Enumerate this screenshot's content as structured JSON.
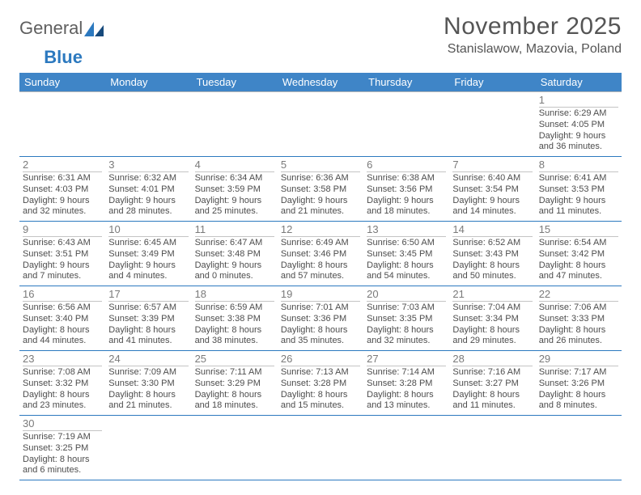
{
  "brand": {
    "part1": "General",
    "part2": "Blue"
  },
  "title": "November 2025",
  "location": "Stanislawow, Mazovia, Poland",
  "colors": {
    "header_bg": "#3f85c7",
    "header_text": "#ffffff",
    "row_border": "#2c79bf",
    "daynum_border": "#c4c4c4",
    "text": "#4d4d4d"
  },
  "dayHeaders": [
    "Sunday",
    "Monday",
    "Tuesday",
    "Wednesday",
    "Thursday",
    "Friday",
    "Saturday"
  ],
  "weeks": [
    [
      null,
      null,
      null,
      null,
      null,
      null,
      {
        "n": "1",
        "sr": "6:29 AM",
        "ss": "4:05 PM",
        "dl": "9 hours and 36 minutes."
      }
    ],
    [
      {
        "n": "2",
        "sr": "6:31 AM",
        "ss": "4:03 PM",
        "dl": "9 hours and 32 minutes."
      },
      {
        "n": "3",
        "sr": "6:32 AM",
        "ss": "4:01 PM",
        "dl": "9 hours and 28 minutes."
      },
      {
        "n": "4",
        "sr": "6:34 AM",
        "ss": "3:59 PM",
        "dl": "9 hours and 25 minutes."
      },
      {
        "n": "5",
        "sr": "6:36 AM",
        "ss": "3:58 PM",
        "dl": "9 hours and 21 minutes."
      },
      {
        "n": "6",
        "sr": "6:38 AM",
        "ss": "3:56 PM",
        "dl": "9 hours and 18 minutes."
      },
      {
        "n": "7",
        "sr": "6:40 AM",
        "ss": "3:54 PM",
        "dl": "9 hours and 14 minutes."
      },
      {
        "n": "8",
        "sr": "6:41 AM",
        "ss": "3:53 PM",
        "dl": "9 hours and 11 minutes."
      }
    ],
    [
      {
        "n": "9",
        "sr": "6:43 AM",
        "ss": "3:51 PM",
        "dl": "9 hours and 7 minutes."
      },
      {
        "n": "10",
        "sr": "6:45 AM",
        "ss": "3:49 PM",
        "dl": "9 hours and 4 minutes."
      },
      {
        "n": "11",
        "sr": "6:47 AM",
        "ss": "3:48 PM",
        "dl": "9 hours and 0 minutes."
      },
      {
        "n": "12",
        "sr": "6:49 AM",
        "ss": "3:46 PM",
        "dl": "8 hours and 57 minutes."
      },
      {
        "n": "13",
        "sr": "6:50 AM",
        "ss": "3:45 PM",
        "dl": "8 hours and 54 minutes."
      },
      {
        "n": "14",
        "sr": "6:52 AM",
        "ss": "3:43 PM",
        "dl": "8 hours and 50 minutes."
      },
      {
        "n": "15",
        "sr": "6:54 AM",
        "ss": "3:42 PM",
        "dl": "8 hours and 47 minutes."
      }
    ],
    [
      {
        "n": "16",
        "sr": "6:56 AM",
        "ss": "3:40 PM",
        "dl": "8 hours and 44 minutes."
      },
      {
        "n": "17",
        "sr": "6:57 AM",
        "ss": "3:39 PM",
        "dl": "8 hours and 41 minutes."
      },
      {
        "n": "18",
        "sr": "6:59 AM",
        "ss": "3:38 PM",
        "dl": "8 hours and 38 minutes."
      },
      {
        "n": "19",
        "sr": "7:01 AM",
        "ss": "3:36 PM",
        "dl": "8 hours and 35 minutes."
      },
      {
        "n": "20",
        "sr": "7:03 AM",
        "ss": "3:35 PM",
        "dl": "8 hours and 32 minutes."
      },
      {
        "n": "21",
        "sr": "7:04 AM",
        "ss": "3:34 PM",
        "dl": "8 hours and 29 minutes."
      },
      {
        "n": "22",
        "sr": "7:06 AM",
        "ss": "3:33 PM",
        "dl": "8 hours and 26 minutes."
      }
    ],
    [
      {
        "n": "23",
        "sr": "7:08 AM",
        "ss": "3:32 PM",
        "dl": "8 hours and 23 minutes."
      },
      {
        "n": "24",
        "sr": "7:09 AM",
        "ss": "3:30 PM",
        "dl": "8 hours and 21 minutes."
      },
      {
        "n": "25",
        "sr": "7:11 AM",
        "ss": "3:29 PM",
        "dl": "8 hours and 18 minutes."
      },
      {
        "n": "26",
        "sr": "7:13 AM",
        "ss": "3:28 PM",
        "dl": "8 hours and 15 minutes."
      },
      {
        "n": "27",
        "sr": "7:14 AM",
        "ss": "3:28 PM",
        "dl": "8 hours and 13 minutes."
      },
      {
        "n": "28",
        "sr": "7:16 AM",
        "ss": "3:27 PM",
        "dl": "8 hours and 11 minutes."
      },
      {
        "n": "29",
        "sr": "7:17 AM",
        "ss": "3:26 PM",
        "dl": "8 hours and 8 minutes."
      }
    ],
    [
      {
        "n": "30",
        "sr": "7:19 AM",
        "ss": "3:25 PM",
        "dl": "8 hours and 6 minutes."
      },
      null,
      null,
      null,
      null,
      null,
      null
    ]
  ],
  "labels": {
    "sunrise": "Sunrise:",
    "sunset": "Sunset:",
    "daylight": "Daylight:"
  }
}
